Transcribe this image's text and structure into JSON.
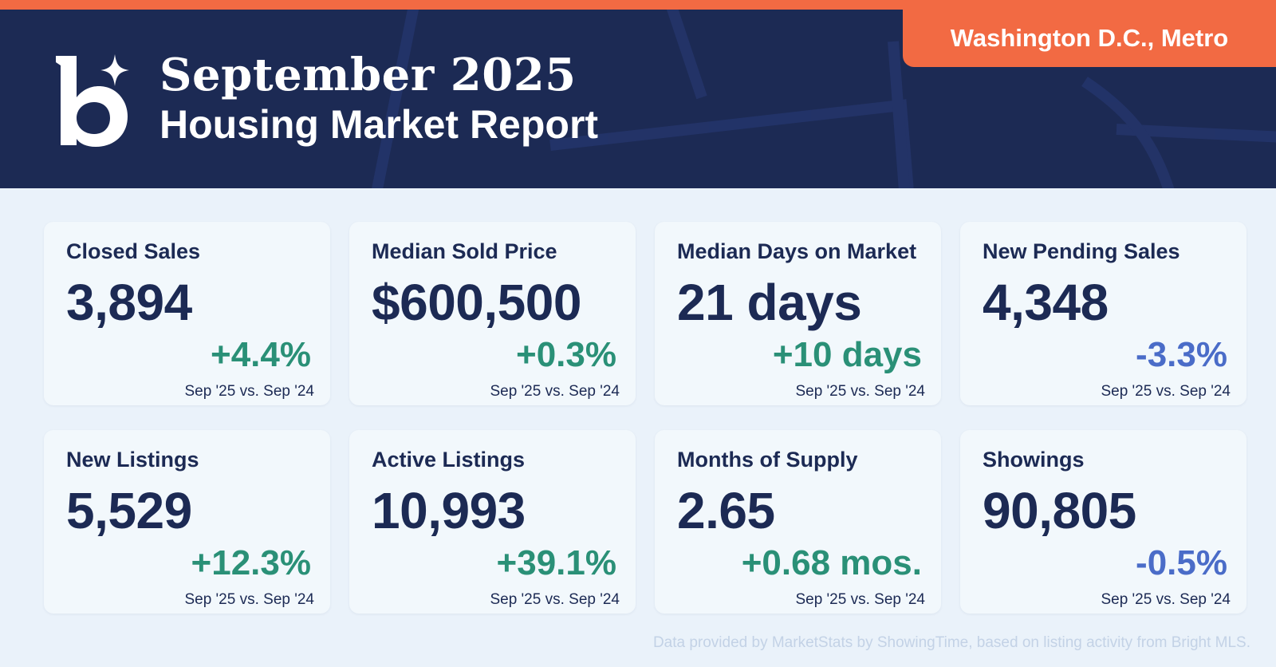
{
  "header": {
    "title_line1": "September 2025",
    "title_line2": "Housing Market Report",
    "region": "Washington D.C., Metro",
    "logo_icon": "b-sparkle-logo"
  },
  "colors": {
    "navy": "#1c2a54",
    "orange": "#f26a43",
    "positive": "#2a9077",
    "negative": "#4a6cc8",
    "background": "#eaf2fa"
  },
  "metrics": [
    {
      "label": "Closed Sales",
      "value": "3,894",
      "change": "+4.4%",
      "direction": "up",
      "compare": "Sep '25 vs. Sep '24"
    },
    {
      "label": "Median Sold Price",
      "value": "$600,500",
      "change": "+0.3%",
      "direction": "up",
      "compare": "Sep '25 vs. Sep '24"
    },
    {
      "label": "Median Days on Market",
      "value": "21 days",
      "change": "+10 days",
      "direction": "up",
      "compare": "Sep '25 vs. Sep '24"
    },
    {
      "label": "New Pending Sales",
      "value": "4,348",
      "change": "-3.3%",
      "direction": "down",
      "compare": "Sep '25 vs. Sep '24"
    },
    {
      "label": "New Listings",
      "value": "5,529",
      "change": "+12.3%",
      "direction": "up",
      "compare": "Sep '25 vs. Sep '24"
    },
    {
      "label": "Active Listings",
      "value": "10,993",
      "change": "+39.1%",
      "direction": "up",
      "compare": "Sep '25 vs. Sep '24"
    },
    {
      "label": "Months of Supply",
      "value": "2.65",
      "change": "+0.68 mos.",
      "direction": "up",
      "compare": "Sep '25 vs. Sep '24"
    },
    {
      "label": "Showings",
      "value": "90,805",
      "change": "-0.5%",
      "direction": "down",
      "compare": "Sep '25 vs. Sep '24"
    }
  ],
  "footer": {
    "note": "Data provided by MarketStats by ShowingTime, based on listing activity from Bright MLS."
  }
}
